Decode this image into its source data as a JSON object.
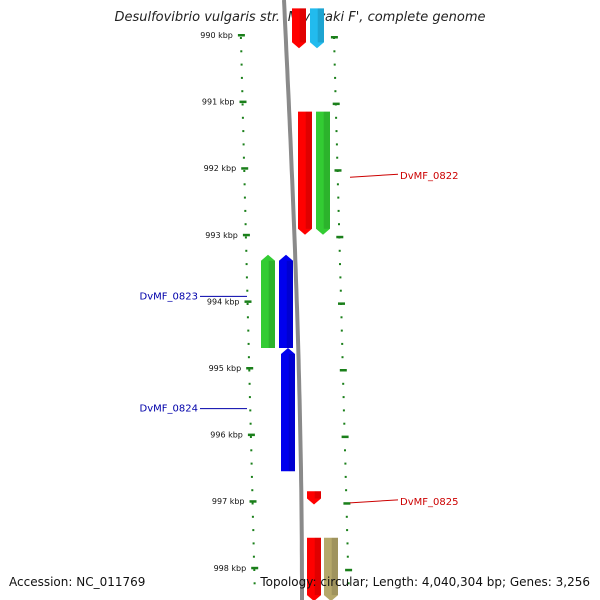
{
  "title": "Desulfovibrio vulgaris str. 'Miyazaki F', complete genome",
  "footer": {
    "accession": "Accession: NC_011769",
    "summary": "Topology: circular; Length: 4,040,304 bp; Genes: 3,256"
  },
  "colors": {
    "backbone": "#8a8a8a",
    "tick": "#1a7f1a",
    "label_forward": "#cc0000",
    "label_reverse": "#0000aa",
    "red": "#ff0000",
    "green": "#33cc33",
    "blue": "#0000ee",
    "cyan": "#22bbee",
    "olive": "#b5a86a"
  },
  "scale": {
    "ticks": [
      {
        "label": "990 kbp"
      },
      {
        "label": "991 kbp"
      },
      {
        "label": "992 kbp"
      },
      {
        "label": "993 kbp"
      },
      {
        "label": "994 kbp"
      },
      {
        "label": "995 kbp"
      },
      {
        "label": "996 kbp"
      },
      {
        "label": "997 kbp"
      },
      {
        "label": "998 kbp"
      }
    ]
  },
  "genes": [
    {
      "name": "",
      "color": "red",
      "strand": "forward",
      "start_kbp": 989.6,
      "end_kbp": 990.2
    },
    {
      "name": "",
      "color": "cyan",
      "strand": "forward",
      "start_kbp": 989.6,
      "end_kbp": 990.2
    },
    {
      "name": "DvMF_0822",
      "color": "red",
      "strand": "forward",
      "start_kbp": 991.15,
      "end_kbp": 993.0
    },
    {
      "name": "",
      "color": "green",
      "strand": "forward",
      "start_kbp": 991.15,
      "end_kbp": 993.0
    },
    {
      "name": "DvMF_0823",
      "color": "green",
      "strand": "reverse",
      "start_kbp": 993.3,
      "end_kbp": 994.7
    },
    {
      "name": "",
      "color": "blue",
      "strand": "reverse",
      "start_kbp": 993.3,
      "end_kbp": 994.7
    },
    {
      "name": "DvMF_0824",
      "color": "blue",
      "strand": "reverse",
      "start_kbp": 994.7,
      "end_kbp": 996.55
    },
    {
      "name": "DvMF_0825",
      "color": "red",
      "strand": "forward",
      "start_kbp": 996.85,
      "end_kbp": 997.05
    },
    {
      "name": "",
      "color": "red",
      "strand": "forward",
      "start_kbp": 997.55,
      "end_kbp": 998.5
    },
    {
      "name": "",
      "color": "olive",
      "strand": "forward",
      "start_kbp": 997.55,
      "end_kbp": 998.5
    }
  ]
}
